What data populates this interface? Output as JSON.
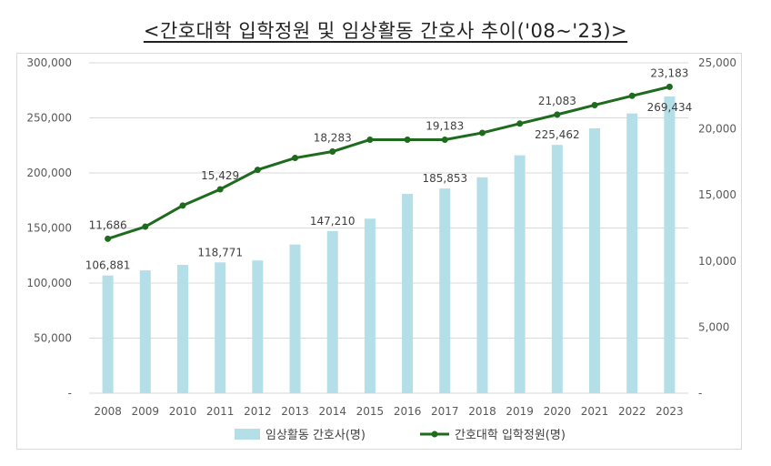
{
  "chart_data": {
    "type": "bar+line",
    "title": "<간호대학 입학정원 및 임상활동 간호사 추이('08~'23)>",
    "categories": [
      "2008",
      "2009",
      "2010",
      "2011",
      "2012",
      "2013",
      "2014",
      "2015",
      "2016",
      "2017",
      "2018",
      "2019",
      "2020",
      "2021",
      "2022",
      "2023"
    ],
    "series": [
      {
        "name": "임상활동 간호사(명)",
        "type": "bar",
        "axis": "left",
        "color": "#b4dfe8",
        "values": [
          106881,
          111500,
          116500,
          118771,
          120500,
          135000,
          147210,
          158500,
          181000,
          185853,
          196000,
          216000,
          225462,
          240500,
          254000,
          269434
        ],
        "labels": {
          "0": "106,881",
          "3": "118,771",
          "6": "147,210",
          "9": "185,853",
          "12": "225,462",
          "15": "269,434"
        }
      },
      {
        "name": "간호대학 입학정원(명)",
        "type": "line",
        "axis": "right",
        "color": "#1e6b1e",
        "values": [
          11686,
          12600,
          14200,
          15429,
          16900,
          17800,
          18283,
          19183,
          19183,
          19183,
          19700,
          20400,
          21083,
          21800,
          22500,
          23183
        ],
        "labels": {
          "0": "11,686",
          "3": "15,429",
          "6": "18,283",
          "9": "19,183",
          "12": "21,083",
          "15": "23,183"
        }
      }
    ],
    "y_left": {
      "min": 0,
      "max": 300000,
      "step": 50000,
      "tick_labels": [
        "-",
        "50,000",
        "100,000",
        "150,000",
        "200,000",
        "250,000",
        "300,000"
      ]
    },
    "y_right": {
      "min": 0,
      "max": 25000,
      "step": 5000,
      "tick_labels": [
        "-",
        "5,000",
        "10,000",
        "15,000",
        "20,000",
        "25,000"
      ]
    },
    "grid": true,
    "legend_position": "bottom"
  }
}
